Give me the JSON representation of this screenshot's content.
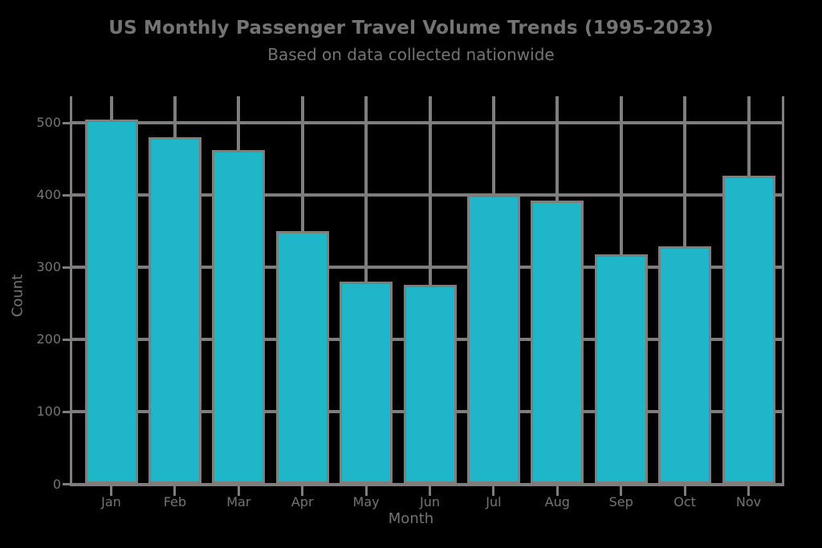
{
  "figure": {
    "background": "#000000",
    "text_color": "#747474"
  },
  "chart_data": {
    "type": "bar",
    "title": "US Monthly Passenger Travel Volume Trends (1995-2023)",
    "subtitle": "Based on data collected nationwide",
    "xlabel": "Month",
    "ylabel": "Count",
    "categories": [
      "Jan",
      "Feb",
      "Mar",
      "Apr",
      "May",
      "Jun",
      "Jul",
      "Aug",
      "Sep",
      "Oct",
      "Nov"
    ],
    "values": [
      505,
      480,
      463,
      350,
      280,
      276,
      400,
      393,
      318,
      329,
      427
    ],
    "yticks": [
      0,
      100,
      200,
      300,
      400,
      500
    ],
    "ylim": [
      0,
      537
    ],
    "grid": true,
    "legend_position": "none",
    "bar_color": "#20b6c9",
    "bar_edge_color": "#7e7e7e",
    "grid_color": "#7e7e7e",
    "tick_color": "#7e7e7e"
  }
}
